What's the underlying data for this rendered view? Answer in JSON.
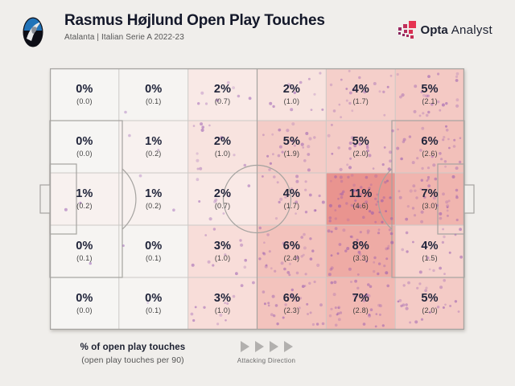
{
  "header": {
    "title": "Rasmus Højlund Open Play Touches",
    "subtitle": "Atalanta | Italian Serie A 2022-23"
  },
  "branding": {
    "name_bold": "Opta",
    "name_light": "Analyst",
    "text_color": "#1c2030",
    "icon_colors": [
      "#e63350",
      "#d83052",
      "#c52f55",
      "#c02e59",
      "#b12d5c",
      "#a52a5e",
      "#9c2963",
      "#93285f",
      "#87265f"
    ]
  },
  "team_badge": {
    "team": "Atalanta",
    "primary_color": "#2173b8",
    "secondary_color": "#0e0e16"
  },
  "legend": {
    "line1": "% of open play touches",
    "line2": "(open play touches per 90)",
    "attacking": "Attacking Direction"
  },
  "chart_data": {
    "type": "heatmap",
    "title": "Rasmus Højlund Open Play Touches",
    "subtitle": "Atalanta | Italian Serie A 2022-23",
    "grid": {
      "columns": 6,
      "rows": 5
    },
    "value_primary": "% of open play touches",
    "value_secondary": "open play touches per 90",
    "attacking_direction": "left-to-right",
    "heat_scale": {
      "low_color": "#f6f5f3",
      "high_color": "#e9948f"
    },
    "scatter": {
      "color": "#9456b0",
      "opacity": 0.4,
      "meaning": "individual open play touch locations",
      "dots_per_touch_per90": 12
    },
    "zones": [
      [
        {
          "pct": "0%",
          "per90": "(0.0)",
          "value": 0.0,
          "color": "#f6f5f3"
        },
        {
          "pct": "0%",
          "per90": "(0.1)",
          "value": 0.1,
          "color": "#f6f4f2"
        },
        {
          "pct": "2%",
          "per90": "(0.7)",
          "value": 0.7,
          "color": "#f9e9e6"
        },
        {
          "pct": "2%",
          "per90": "(1.0)",
          "value": 1.0,
          "color": "#f8e3df"
        },
        {
          "pct": "4%",
          "per90": "(1.7)",
          "value": 1.7,
          "color": "#f5cfca"
        },
        {
          "pct": "5%",
          "per90": "(2.1)",
          "value": 2.1,
          "color": "#f4c9c4"
        }
      ],
      [
        {
          "pct": "0%",
          "per90": "(0.0)",
          "value": 0.0,
          "color": "#f6f5f3"
        },
        {
          "pct": "1%",
          "per90": "(0.2)",
          "value": 0.2,
          "color": "#f8f1ef"
        },
        {
          "pct": "2%",
          "per90": "(1.0)",
          "value": 1.0,
          "color": "#f8e3df"
        },
        {
          "pct": "5%",
          "per90": "(1.9)",
          "value": 1.9,
          "color": "#f4ccc7"
        },
        {
          "pct": "5%",
          "per90": "(2.0)",
          "value": 2.0,
          "color": "#f4cbc6"
        },
        {
          "pct": "6%",
          "per90": "(2.6)",
          "value": 2.6,
          "color": "#f2c0ba"
        }
      ],
      [
        {
          "pct": "1%",
          "per90": "(0.2)",
          "value": 0.2,
          "color": "#f8f1ef"
        },
        {
          "pct": "1%",
          "per90": "(0.2)",
          "value": 0.2,
          "color": "#f8f1ef"
        },
        {
          "pct": "2%",
          "per90": "(0.7)",
          "value": 0.7,
          "color": "#f9e9e6"
        },
        {
          "pct": "4%",
          "per90": "(1.7)",
          "value": 1.7,
          "color": "#f5cfca"
        },
        {
          "pct": "11%",
          "per90": "(4.6)",
          "value": 4.6,
          "color": "#e9948f"
        },
        {
          "pct": "7%",
          "per90": "(3.0)",
          "value": 3.0,
          "color": "#f0b5af"
        }
      ],
      [
        {
          "pct": "0%",
          "per90": "(0.1)",
          "value": 0.1,
          "color": "#f6f4f2"
        },
        {
          "pct": "0%",
          "per90": "(0.1)",
          "value": 0.1,
          "color": "#f6f4f2"
        },
        {
          "pct": "3%",
          "per90": "(1.0)",
          "value": 1.0,
          "color": "#f8ddd9"
        },
        {
          "pct": "6%",
          "per90": "(2.4)",
          "value": 2.4,
          "color": "#f3c2bc"
        },
        {
          "pct": "8%",
          "per90": "(3.3)",
          "value": 3.3,
          "color": "#eeaba5"
        },
        {
          "pct": "4%",
          "per90": "(1.5)",
          "value": 1.5,
          "color": "#f6d3ce"
        }
      ],
      [
        {
          "pct": "0%",
          "per90": "(0.0)",
          "value": 0.0,
          "color": "#f6f5f3"
        },
        {
          "pct": "0%",
          "per90": "(0.1)",
          "value": 0.1,
          "color": "#f6f4f2"
        },
        {
          "pct": "3%",
          "per90": "(1.0)",
          "value": 1.0,
          "color": "#f8ddd9"
        },
        {
          "pct": "6%",
          "per90": "(2.3)",
          "value": 2.3,
          "color": "#f3c3bd"
        },
        {
          "pct": "7%",
          "per90": "(2.8)",
          "value": 2.8,
          "color": "#f1b9b3"
        },
        {
          "pct": "5%",
          "per90": "(2.0)",
          "value": 2.0,
          "color": "#f4cbc6"
        }
      ]
    ]
  }
}
